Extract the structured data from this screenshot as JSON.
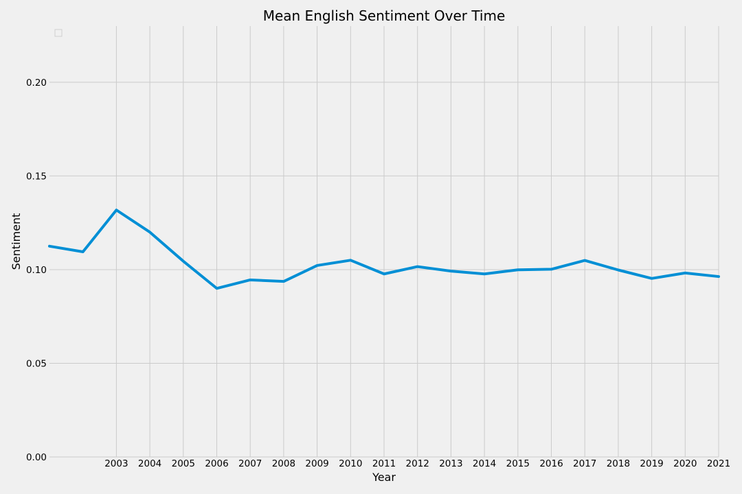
{
  "chart_data": {
    "type": "line",
    "title": "Mean English Sentiment Over Time",
    "xlabel": "Year",
    "ylabel": "Sentiment",
    "x": [
      2001,
      2002,
      2003,
      2004,
      2005,
      2006,
      2007,
      2008,
      2009,
      2010,
      2011,
      2012,
      2013,
      2014,
      2015,
      2016,
      2017,
      2018,
      2019,
      2020,
      2021
    ],
    "x_tick_labels": [
      "2003",
      "2004",
      "2005",
      "2006",
      "2007",
      "2008",
      "2009",
      "2010",
      "2011",
      "2012",
      "2013",
      "2014",
      "2015",
      "2016",
      "2017",
      "2018",
      "2019",
      "2020",
      "2021"
    ],
    "y_tick_labels": [
      "0.00",
      "0.05",
      "0.10",
      "0.15",
      "0.20"
    ],
    "xlim": [
      2001,
      2021
    ],
    "ylim": [
      0.0,
      0.23
    ],
    "grid": true,
    "legend": {
      "placement": "top-left",
      "entries": []
    },
    "series": [
      {
        "values": [
          0.1125,
          0.1095,
          0.1318,
          0.12,
          0.1045,
          0.09,
          0.0945,
          0.0937,
          0.1022,
          0.105,
          0.0977,
          0.1016,
          0.0992,
          0.0977,
          0.0999,
          0.1002,
          0.1049,
          0.0998,
          0.0953,
          0.0982,
          0.0963
        ],
        "color": "#008fd5"
      }
    ],
    "colors": {
      "background": "#f0f0f0",
      "grid": "#cbcbcb",
      "line": "#008fd5"
    }
  }
}
